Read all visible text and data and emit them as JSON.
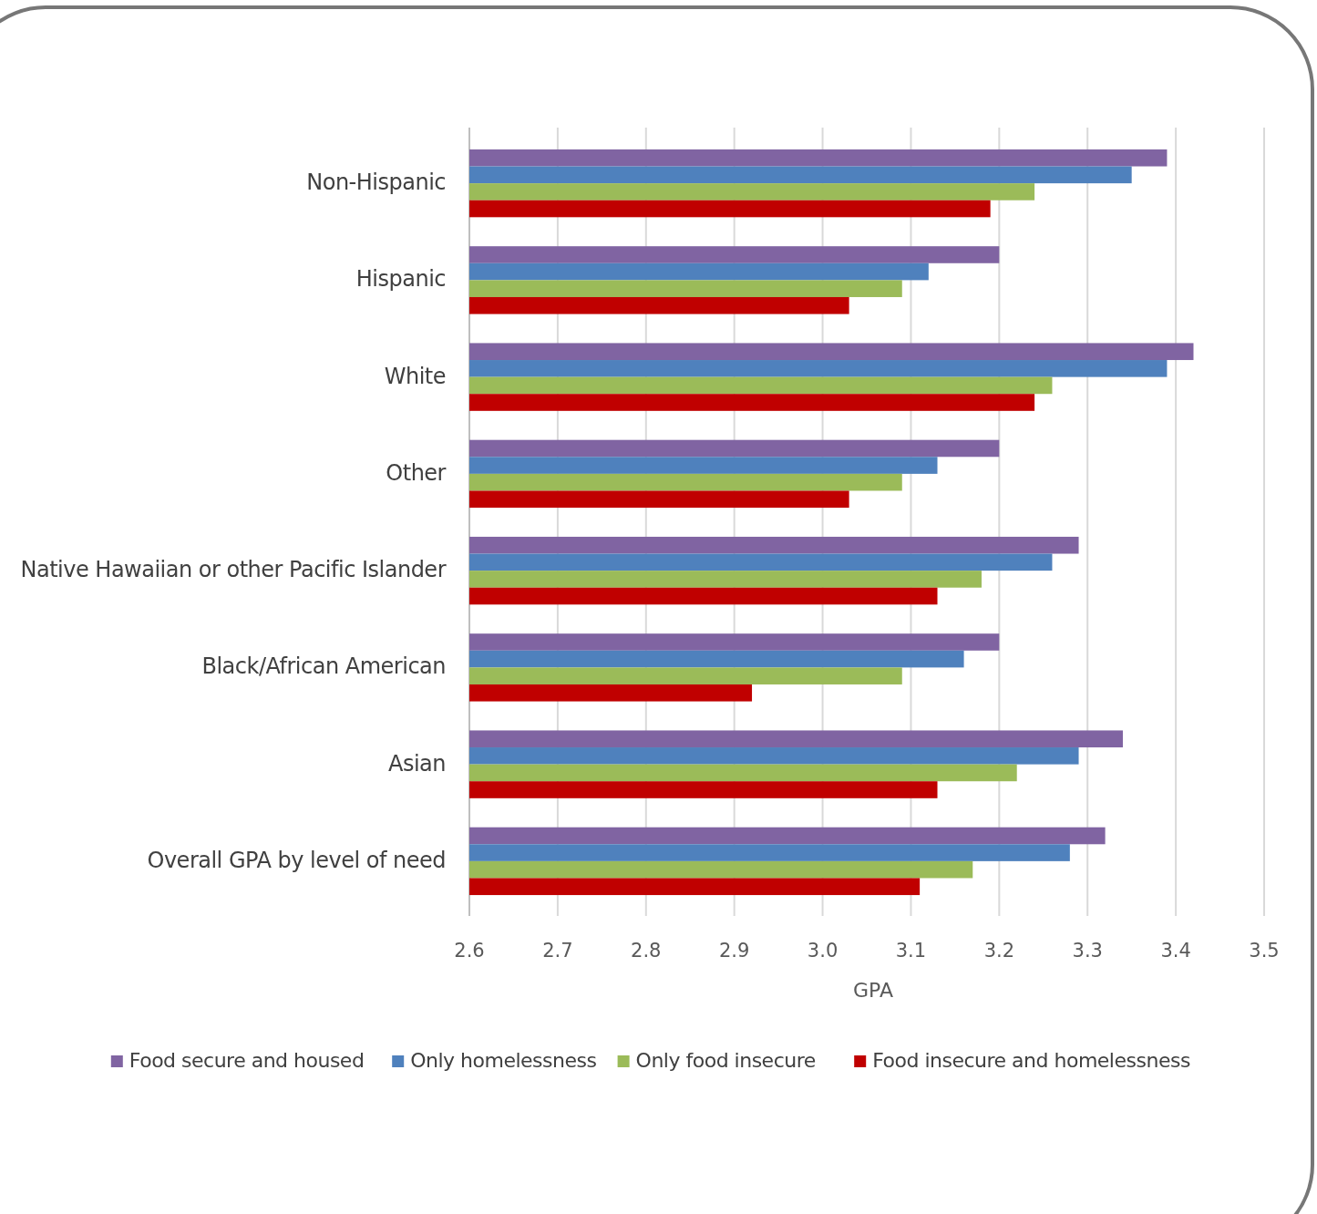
{
  "chart_data": {
    "type": "bar",
    "orientation": "horizontal",
    "xlabel": "GPA",
    "categories": [
      "Non-Hispanic",
      "Hispanic",
      "White",
      "Other",
      "Native Hawaiian or other Pacific Islander",
      "Black/African American",
      "Asian",
      "Overall GPA by level of need"
    ],
    "series": [
      {
        "name": "Food secure and housed",
        "color": "#8064a2",
        "values": [
          3.39,
          3.2,
          3.42,
          3.2,
          3.29,
          3.2,
          3.34,
          3.32
        ]
      },
      {
        "name": "Only homelessness",
        "color": "#4f81bd",
        "values": [
          3.35,
          3.12,
          3.39,
          3.13,
          3.26,
          3.16,
          3.29,
          3.28
        ]
      },
      {
        "name": "Only food insecure",
        "color": "#9bbb59",
        "values": [
          3.24,
          3.09,
          3.26,
          3.09,
          3.18,
          3.09,
          3.22,
          3.17
        ]
      },
      {
        "name": "Food insecure and homelessness",
        "color": "#c00000",
        "values": [
          3.19,
          3.03,
          3.24,
          3.03,
          3.13,
          2.92,
          3.13,
          3.11
        ]
      }
    ],
    "xlim": [
      2.6,
      3.5
    ],
    "xticks": [
      2.6,
      2.7,
      2.8,
      2.9,
      {
        "value": 3,
        "label": "3.0"
      },
      3.1,
      3.2,
      3.3,
      3.4,
      3.5
    ],
    "grid": "x",
    "legend": "bottom"
  }
}
